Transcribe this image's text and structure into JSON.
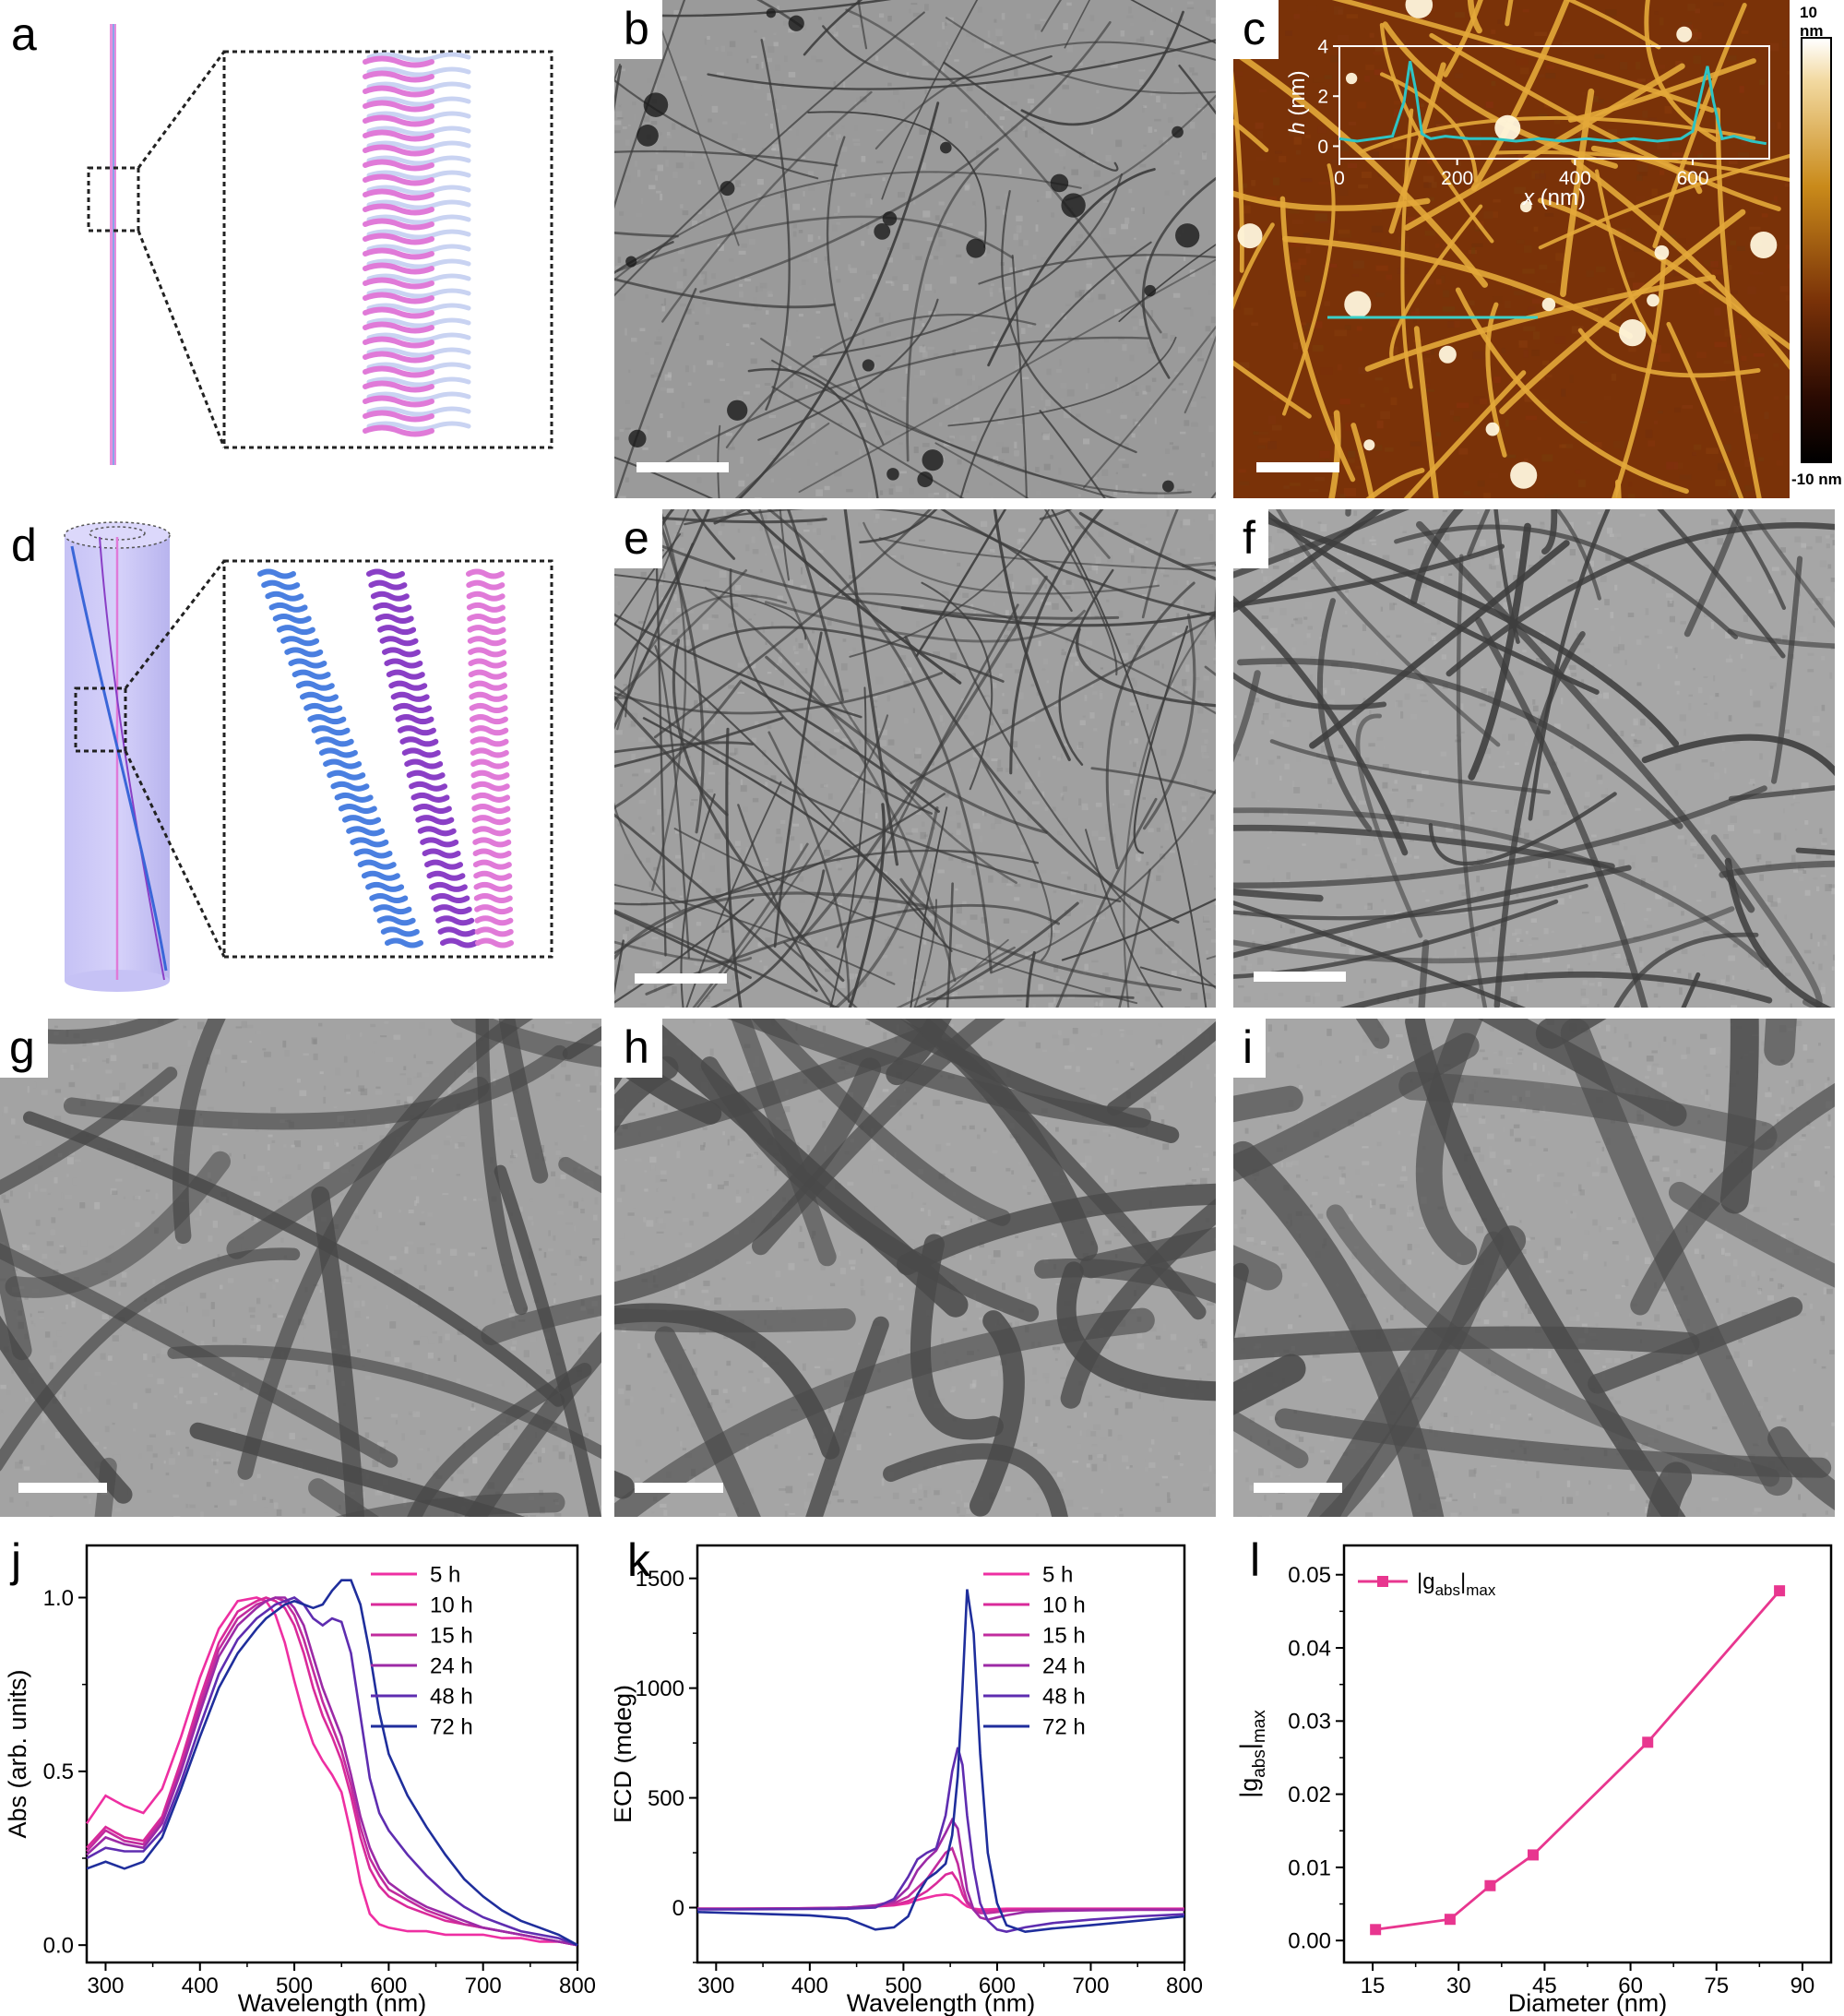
{
  "panels": {
    "a": "a",
    "b": "b",
    "c": "c",
    "d": "d",
    "e": "e",
    "f": "f",
    "g": "g",
    "h": "h",
    "i": "i",
    "j": "j",
    "k": "k",
    "l": "l"
  },
  "colorbar": {
    "top": "10 nm",
    "bottom": "-10 nm"
  },
  "colors": {
    "afm_trace": "#2ec4c4",
    "afm_line": "#3ad0c8",
    "ribbon_pink": "#e07ad8",
    "ribbon_purple": "#8a3fc6",
    "ribbon_blue": "#4a7fe0",
    "marker_l": "#e8368f"
  },
  "chart_data": [
    {
      "id": "c-inset",
      "type": "line",
      "xlabel_var": "x",
      "xlabel_unit": " (nm)",
      "ylabel_var": "h",
      "ylabel_unit": " (nm)",
      "xlim": [
        0,
        730
      ],
      "ylim": [
        -0.5,
        4
      ],
      "xticks": [
        0,
        200,
        400,
        600
      ],
      "yticks": [
        0,
        2,
        4
      ],
      "series": [
        {
          "x": [
            0,
            30,
            60,
            90,
            110,
            120,
            130,
            140,
            155,
            180,
            220,
            260,
            300,
            340,
            380,
            420,
            460,
            500,
            540,
            580,
            600,
            615,
            625,
            635,
            650,
            670,
            700,
            725
          ],
          "y": [
            0.3,
            0.2,
            0.3,
            0.4,
            1.8,
            3.4,
            2.2,
            0.5,
            0.3,
            0.4,
            0.3,
            0.3,
            0.2,
            0.3,
            0.2,
            0.3,
            0.2,
            0.3,
            0.2,
            0.3,
            0.6,
            2.2,
            3.2,
            1.8,
            0.3,
            0.4,
            0.2,
            0.1
          ]
        }
      ]
    },
    {
      "id": "j",
      "type": "line",
      "xlabel": "Wavelength (nm)",
      "ylabel": "Abs (arb. units)",
      "xlim": [
        280,
        800
      ],
      "ylim": [
        -0.05,
        1.15
      ],
      "xticks": [
        300,
        400,
        500,
        600,
        700,
        800
      ],
      "yticks": [
        0.0,
        0.5,
        1.0
      ],
      "ytick_labels": [
        "0.0",
        "0.5",
        "1.0"
      ],
      "x": [
        280,
        300,
        320,
        340,
        360,
        380,
        400,
        420,
        440,
        460,
        470,
        480,
        490,
        500,
        510,
        520,
        530,
        540,
        550,
        560,
        570,
        580,
        590,
        600,
        620,
        640,
        660,
        680,
        700,
        720,
        740,
        760,
        780,
        800
      ],
      "series": [
        {
          "name": "5 h",
          "color": "#ee2fa2",
          "values": [
            0.35,
            0.43,
            0.4,
            0.38,
            0.45,
            0.6,
            0.77,
            0.91,
            0.99,
            1.0,
            0.99,
            0.95,
            0.87,
            0.76,
            0.66,
            0.58,
            0.53,
            0.49,
            0.44,
            0.32,
            0.18,
            0.09,
            0.06,
            0.05,
            0.04,
            0.04,
            0.03,
            0.03,
            0.03,
            0.02,
            0.02,
            0.01,
            0.01,
            0.0
          ]
        },
        {
          "name": "10 h",
          "color": "#d92a9a",
          "values": [
            0.28,
            0.34,
            0.31,
            0.3,
            0.37,
            0.53,
            0.71,
            0.87,
            0.96,
            0.99,
            1.0,
            0.99,
            0.97,
            0.92,
            0.84,
            0.74,
            0.66,
            0.6,
            0.53,
            0.43,
            0.31,
            0.22,
            0.17,
            0.14,
            0.11,
            0.09,
            0.07,
            0.06,
            0.05,
            0.04,
            0.03,
            0.02,
            0.01,
            0.0
          ]
        },
        {
          "name": "15 h",
          "color": "#c12c9e",
          "values": [
            0.27,
            0.33,
            0.3,
            0.29,
            0.36,
            0.51,
            0.69,
            0.85,
            0.94,
            0.98,
            0.99,
            1.0,
            0.99,
            0.95,
            0.88,
            0.79,
            0.7,
            0.63,
            0.56,
            0.46,
            0.34,
            0.25,
            0.2,
            0.16,
            0.13,
            0.1,
            0.08,
            0.06,
            0.05,
            0.04,
            0.03,
            0.02,
            0.01,
            0.0
          ]
        },
        {
          "name": "24 h",
          "color": "#9c2aa6",
          "values": [
            0.26,
            0.31,
            0.29,
            0.28,
            0.35,
            0.5,
            0.67,
            0.83,
            0.92,
            0.97,
            0.99,
            1.0,
            1.0,
            0.97,
            0.92,
            0.83,
            0.74,
            0.67,
            0.6,
            0.49,
            0.37,
            0.28,
            0.22,
            0.18,
            0.14,
            0.11,
            0.09,
            0.07,
            0.05,
            0.04,
            0.03,
            0.02,
            0.01,
            0.0
          ]
        },
        {
          "name": "48 h",
          "color": "#5e2db0",
          "values": [
            0.25,
            0.28,
            0.27,
            0.27,
            0.33,
            0.47,
            0.63,
            0.78,
            0.88,
            0.94,
            0.96,
            0.98,
            0.99,
            1.0,
            0.98,
            0.94,
            0.92,
            0.94,
            0.93,
            0.84,
            0.66,
            0.48,
            0.38,
            0.33,
            0.26,
            0.2,
            0.15,
            0.11,
            0.08,
            0.06,
            0.04,
            0.03,
            0.02,
            0.0
          ]
        },
        {
          "name": "72 h",
          "color": "#1f2e9c",
          "values": [
            0.22,
            0.24,
            0.22,
            0.24,
            0.31,
            0.45,
            0.6,
            0.74,
            0.84,
            0.91,
            0.94,
            0.96,
            0.98,
            0.99,
            0.98,
            0.97,
            0.98,
            1.02,
            1.05,
            1.05,
            0.98,
            0.84,
            0.67,
            0.55,
            0.43,
            0.34,
            0.26,
            0.19,
            0.14,
            0.1,
            0.07,
            0.05,
            0.03,
            0.0
          ]
        }
      ],
      "legend": "top-right"
    },
    {
      "id": "k",
      "type": "line",
      "xlabel": "Wavelength (nm)",
      "ylabel": "ECD (mdeg)",
      "xlim": [
        280,
        800
      ],
      "ylim": [
        -250,
        1650
      ],
      "xticks": [
        300,
        400,
        500,
        600,
        700,
        800
      ],
      "yticks": [
        0,
        500,
        1000,
        1500
      ],
      "x": [
        280,
        320,
        360,
        400,
        440,
        470,
        490,
        505,
        515,
        525,
        535,
        545,
        552,
        558,
        563,
        568,
        575,
        582,
        590,
        600,
        610,
        630,
        660,
        700,
        750,
        800
      ],
      "series": [
        {
          "name": "5 h",
          "color": "#ee2fa2",
          "values": [
            -5,
            -5,
            -4,
            -3,
            0,
            5,
            10,
            20,
            35,
            45,
            55,
            60,
            55,
            40,
            20,
            5,
            -5,
            -8,
            -8,
            -6,
            -5,
            -5,
            -5,
            -5,
            -5,
            -5
          ]
        },
        {
          "name": "10 h",
          "color": "#d92a9a",
          "values": [
            -5,
            -5,
            -4,
            -3,
            0,
            5,
            12,
            30,
            50,
            75,
            110,
            150,
            160,
            120,
            60,
            20,
            -5,
            -15,
            -15,
            -12,
            -10,
            -8,
            -6,
            -6,
            -6,
            -6
          ]
        },
        {
          "name": "15 h",
          "color": "#c12c9e",
          "values": [
            -5,
            -5,
            -4,
            -3,
            0,
            8,
            20,
            50,
            90,
            130,
            190,
            250,
            270,
            200,
            100,
            30,
            -10,
            -25,
            -25,
            -20,
            -15,
            -10,
            -8,
            -8,
            -8,
            -8
          ]
        },
        {
          "name": "24 h",
          "color": "#9c2aa6",
          "values": [
            -6,
            -6,
            -5,
            -4,
            0,
            10,
            30,
            90,
            170,
            220,
            260,
            340,
            400,
            360,
            220,
            80,
            -10,
            -45,
            -55,
            -45,
            -35,
            -20,
            -15,
            -12,
            -10,
            -10
          ]
        },
        {
          "name": "48 h",
          "color": "#5e2db0",
          "values": [
            -8,
            -8,
            -7,
            -6,
            -5,
            0,
            40,
            140,
            220,
            250,
            270,
            420,
            620,
            730,
            650,
            420,
            180,
            20,
            -60,
            -100,
            -110,
            -90,
            -70,
            -55,
            -40,
            -30
          ]
        },
        {
          "name": "72 h",
          "color": "#1f2e9c",
          "values": [
            -20,
            -25,
            -30,
            -35,
            -50,
            -100,
            -90,
            -40,
            60,
            130,
            160,
            200,
            330,
            600,
            1000,
            1450,
            1250,
            700,
            250,
            20,
            -80,
            -110,
            -95,
            -80,
            -60,
            -40
          ]
        }
      ],
      "legend": "top-right"
    },
    {
      "id": "l",
      "type": "line",
      "xlabel": "Diameter (nm)",
      "ylabel_main": "|g",
      "ylabel_sub": "abs",
      "ylabel_end": "|",
      "ylabel_sub2": "max",
      "legend_main": "|g",
      "legend_sub": "abs",
      "legend_end": "|",
      "legend_sub2": "max",
      "xlim": [
        10,
        95
      ],
      "ylim": [
        -0.003,
        0.054
      ],
      "xticks": [
        15,
        30,
        45,
        60,
        75,
        90
      ],
      "yticks": [
        0.0,
        0.01,
        0.02,
        0.03,
        0.04,
        0.05
      ],
      "ytick_labels": [
        "0.00",
        "0.01",
        "0.02",
        "0.03",
        "0.04",
        "0.05"
      ],
      "series": [
        {
          "name": "|gabs|max",
          "color": "#e8368f",
          "x": [
            15.5,
            28.5,
            35.5,
            43,
            63,
            86
          ],
          "values": [
            0.0015,
            0.0029,
            0.0075,
            0.0117,
            0.0271,
            0.0478
          ]
        }
      ]
    }
  ]
}
